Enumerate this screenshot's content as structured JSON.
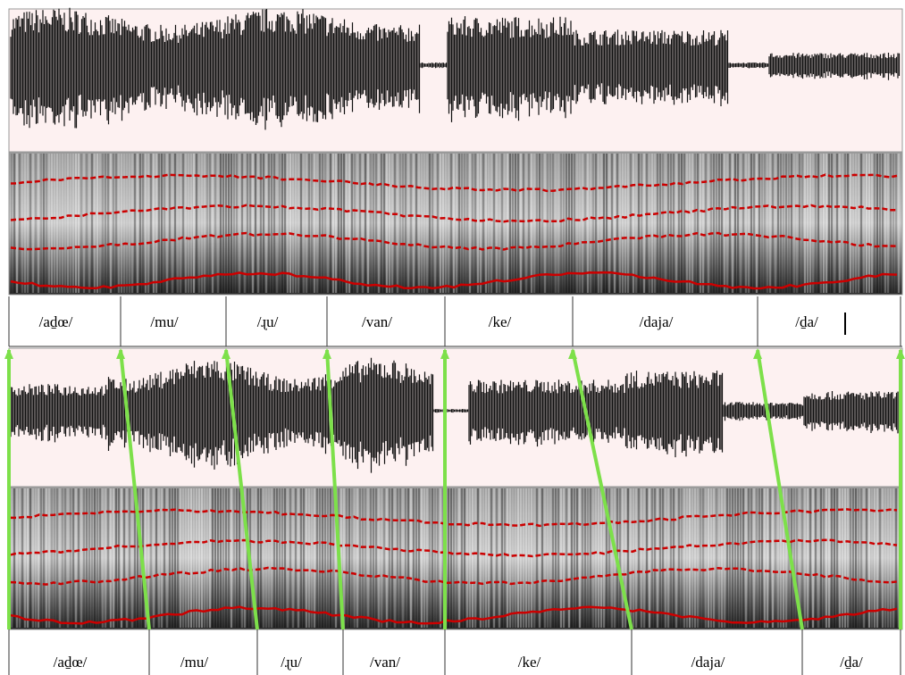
{
  "top_tier": {
    "labels": [
      "/aḏœ/",
      "/mu/",
      "/ɻu/",
      "/van/",
      "/ke/",
      "/daja/",
      "/ḏa/"
    ]
  },
  "bottom_tier": {
    "labels": [
      "/aḏœ/",
      "/mu/",
      "/ɻu/",
      "/van/",
      "/ke/",
      "/daja/",
      "/ḏa/"
    ]
  }
}
